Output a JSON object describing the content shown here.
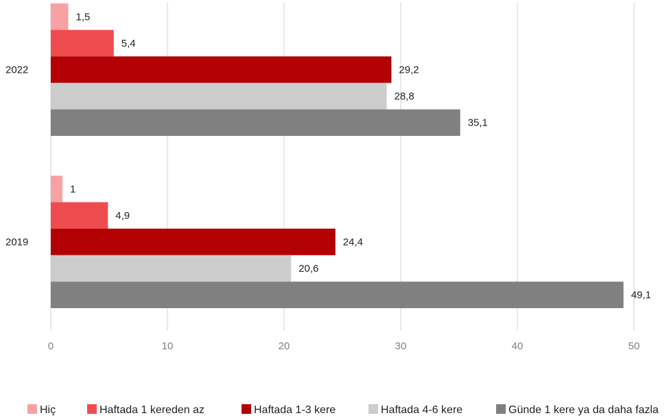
{
  "chart_data": {
    "type": "bar",
    "orientation": "horizontal",
    "title": "",
    "xlabel": "",
    "ylabel": "",
    "xlim": [
      0,
      50
    ],
    "x_ticks": [
      "0",
      "10",
      "20",
      "30",
      "40",
      "50"
    ],
    "grid": "vertical",
    "legend_position": "bottom",
    "categories": [
      "2022",
      "2019"
    ],
    "series": [
      {
        "name": "Hiç",
        "color": "#f7a1a3",
        "values": [
          1.5,
          1
        ],
        "labels": [
          "1,5",
          "1"
        ]
      },
      {
        "name": "Haftada 1 kereden az",
        "color": "#ef4c4f",
        "values": [
          5.4,
          4.9
        ],
        "labels": [
          "5,4",
          "4,9"
        ]
      },
      {
        "name": "Haftada 1-3 kere",
        "color": "#b30004",
        "values": [
          29.2,
          24.4
        ],
        "labels": [
          "29,2",
          "24,4"
        ]
      },
      {
        "name": "Haftada 4-6 kere",
        "color": "#cccccc",
        "values": [
          28.8,
          20.6
        ],
        "labels": [
          "28,8",
          "20,6"
        ]
      },
      {
        "name": "Günde 1 kere ya da daha fazla",
        "color": "#808080",
        "values": [
          35.1,
          49.1
        ],
        "labels": [
          "35,1",
          "49,1"
        ]
      }
    ]
  }
}
